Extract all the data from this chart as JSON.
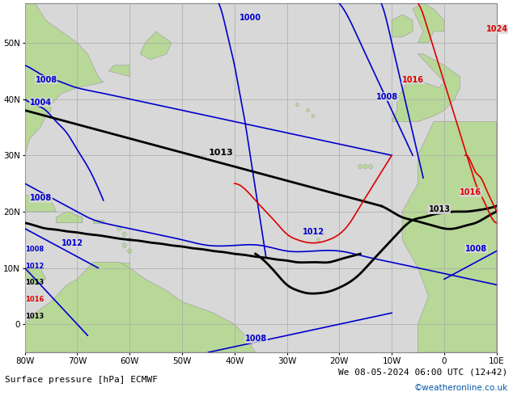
{
  "title_bottom": "Surface pressure [hPa] ECMWF",
  "title_right": "We 08-05-2024 06:00 UTC (12+42)",
  "watermark": "©weatheronline.co.uk",
  "land_color": "#b8d898",
  "sea_color": "#d8d8d8",
  "grid_color": "#aaaaaa",
  "blue": "#0000cc",
  "red": "#dd0000",
  "black": "#000000",
  "figsize": [
    6.34,
    4.9
  ],
  "dpi": 100,
  "xlim": [
    -80,
    10
  ],
  "ylim": [
    -5,
    57
  ],
  "xticks": [
    -80,
    -70,
    -60,
    -50,
    -40,
    -30,
    -20,
    -10,
    0,
    10
  ],
  "yticks": [
    0,
    10,
    20,
    30,
    40,
    50
  ],
  "xlabel_labels": [
    "80W",
    "70W",
    "60W",
    "50W",
    "40W",
    "30W",
    "20W",
    "10W",
    "0",
    "10E"
  ],
  "ylabel_labels": [
    "0",
    "10N",
    "20N",
    "30N",
    "40N",
    "50N"
  ]
}
